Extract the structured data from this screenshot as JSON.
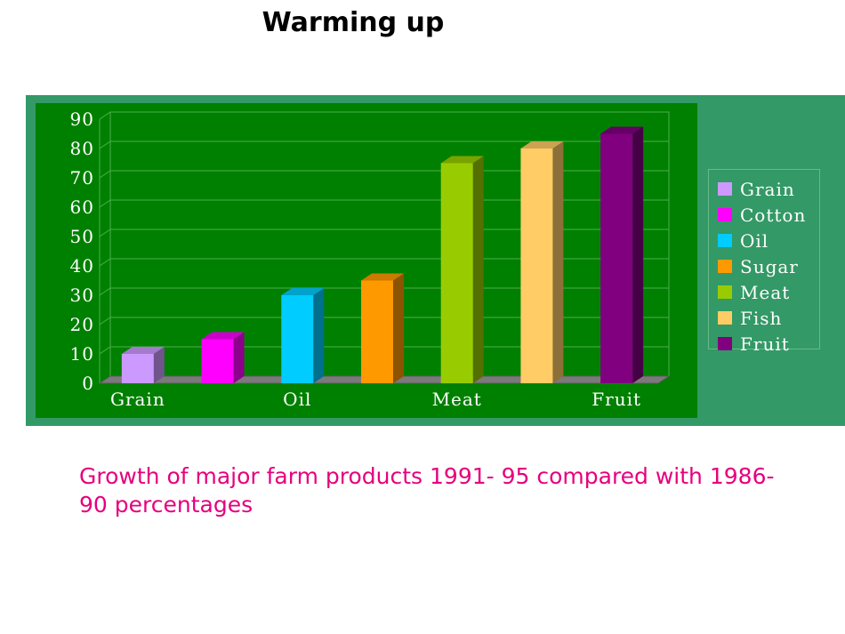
{
  "slide": {
    "title": "Warming up",
    "caption": "Growth of major farm products 1991- 95 compared with 1986-90 percentages"
  },
  "chart_data": {
    "type": "bar",
    "style": "3d",
    "categories": [
      "Grain",
      "Cotton",
      "Oil",
      "Sugar",
      "Meat",
      "Fish",
      "Fruit"
    ],
    "x_tick_labels": [
      "Grain",
      "",
      "Oil",
      "",
      "Meat",
      "",
      "Fruit"
    ],
    "values": [
      10,
      15,
      30,
      35,
      75,
      80,
      85
    ],
    "colors": [
      "#cc99ff",
      "#ff00ff",
      "#00ccff",
      "#ff9900",
      "#99cc00",
      "#ffcc66",
      "#800080"
    ],
    "ylim": [
      0,
      90
    ],
    "y_ticks": [
      0,
      10,
      20,
      30,
      40,
      50,
      60,
      70,
      80,
      90
    ],
    "grid": true,
    "legend_position": "right",
    "title": "",
    "xlabel": "",
    "ylabel": "",
    "plot_background": "#008000",
    "frame_background": "#339966"
  }
}
